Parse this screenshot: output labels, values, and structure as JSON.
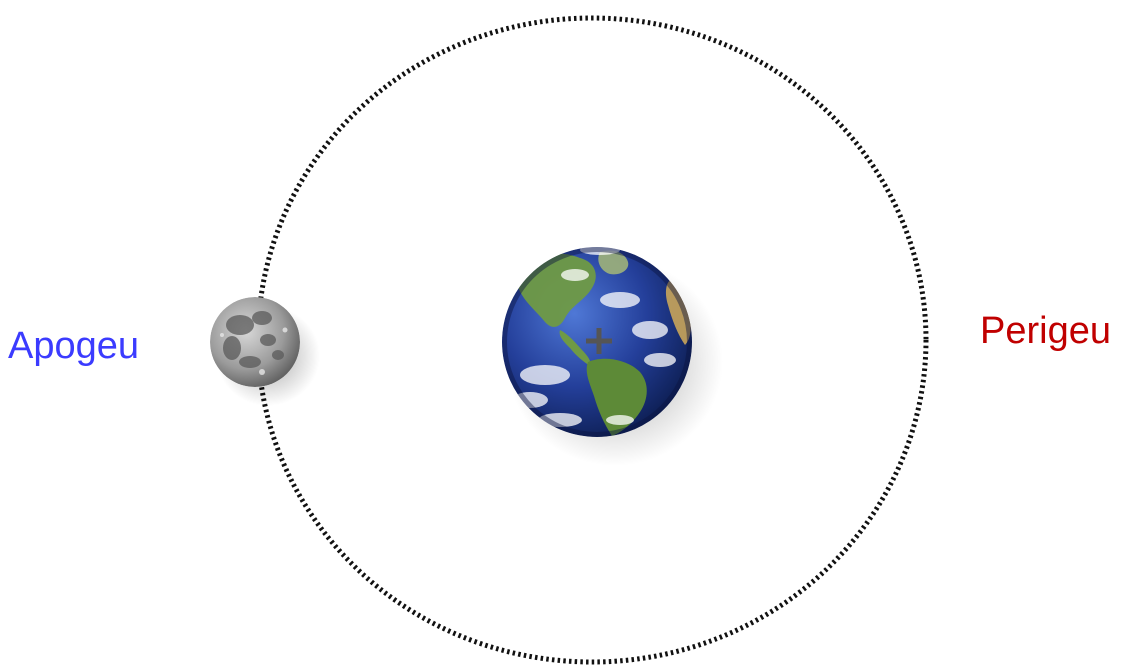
{
  "labels": {
    "apogee": "Apogeu",
    "perigee": "Perigeu"
  },
  "colors": {
    "apogee_label": "#3b3bff",
    "perigee_label": "#c00000",
    "orbit_path": "#111111",
    "earth_ocean": "#1f3f8f",
    "earth_land": "#5f8f3a",
    "moon_surface": "#9a9a9a",
    "focus_mark": "#555555"
  },
  "icons": {
    "earth": "earth-globe-icon",
    "moon": "moon-icon",
    "focus": "plus-marker-icon"
  }
}
